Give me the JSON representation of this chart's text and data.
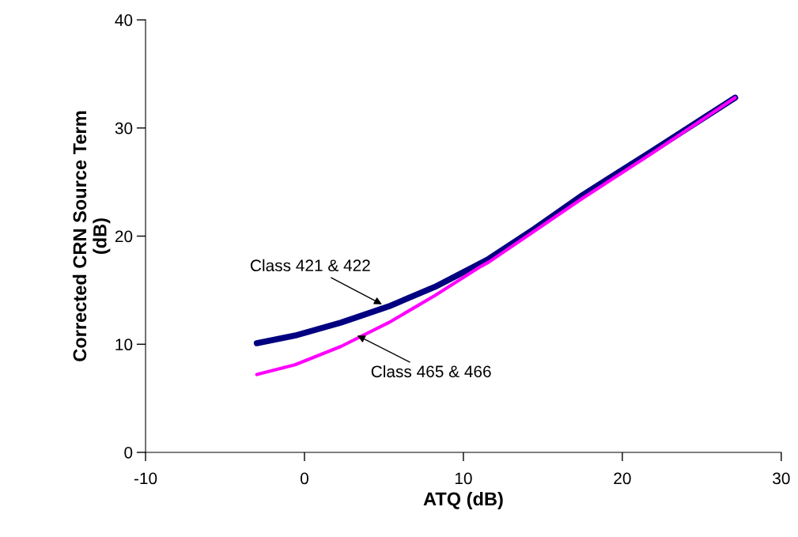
{
  "chart_data": {
    "type": "line",
    "xlabel": "ATQ (dB)",
    "ylabel": "Corrected CRN Source Term\n(dB)",
    "xlim": [
      -10,
      30
    ],
    "xticks": [
      -10,
      0,
      10,
      20,
      30
    ],
    "ylim": [
      0,
      40
    ],
    "yticks": [
      0,
      10,
      20,
      30,
      40
    ],
    "grid": false,
    "legend": false,
    "marker": "none",
    "line_style": "solid",
    "series": [
      {
        "color": "#000080",
        "x": [
          -3,
          -0.6,
          2.3,
          5.3,
          8.2,
          11.1,
          11.6,
          14.5,
          17.5,
          21.8,
          27.1
        ],
        "values": [
          10.1,
          10.8,
          12.0,
          13.5,
          15.3,
          17.5,
          17.9,
          20.7,
          23.8,
          27.8,
          32.8
        ]
      },
      {
        "color": "#ff00ff",
        "x": [
          -3,
          -0.6,
          2.3,
          5.3,
          8.2,
          11.1,
          11.6,
          14.5,
          17.5,
          21.8,
          27.1
        ],
        "values": [
          7.2,
          8.1,
          9.8,
          12.0,
          14.5,
          17.2,
          17.6,
          20.5,
          23.5,
          27.6,
          32.8
        ]
      }
    ],
    "annotations": [
      {
        "text": "Class 421 & 422",
        "x": 5.0,
        "y": 13.6
      },
      {
        "text": "Class 465 & 466",
        "x": 3.2,
        "y": 10.9
      }
    ]
  }
}
